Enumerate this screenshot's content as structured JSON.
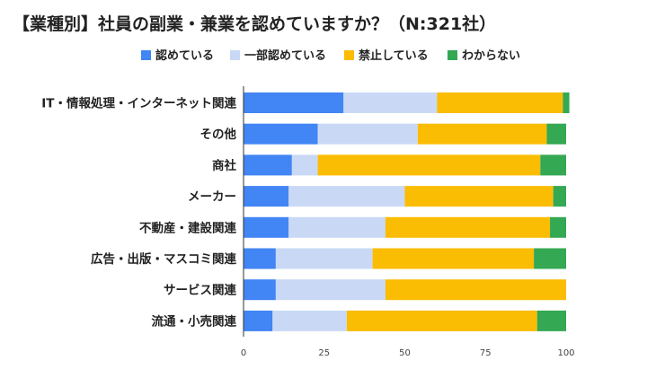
{
  "chart_data": {
    "type": "bar",
    "orientation": "horizontal",
    "stacked": true,
    "title": "【業種別】社員の副業・兼業を認めていますか？（N:321社）",
    "categories": [
      "IT・情報処理・インターネット関連",
      "その他",
      "商社",
      "メーカー",
      "不動産・建設関連",
      "広告・出版・マスコミ関連",
      "サービス関連",
      "流通・小売関連"
    ],
    "series": [
      {
        "name": "認めている",
        "color": "#4285f4",
        "values": [
          31,
          23,
          15,
          14,
          14,
          10,
          10,
          9
        ]
      },
      {
        "name": "一部認めている",
        "color": "#c9d9f5",
        "values": [
          29,
          31,
          8,
          36,
          30,
          30,
          34,
          23
        ]
      },
      {
        "name": "禁止している",
        "color": "#fbbc04",
        "values": [
          39,
          40,
          69,
          46,
          51,
          50,
          56,
          59
        ]
      },
      {
        "name": "わからない",
        "color": "#34a853",
        "values": [
          2,
          6,
          8,
          4,
          5,
          10,
          0,
          9
        ]
      }
    ],
    "xlim": [
      0,
      100
    ],
    "xticks": [
      "0",
      "25",
      "50",
      "75",
      "100"
    ],
    "grid": false,
    "legend_position": "top"
  }
}
